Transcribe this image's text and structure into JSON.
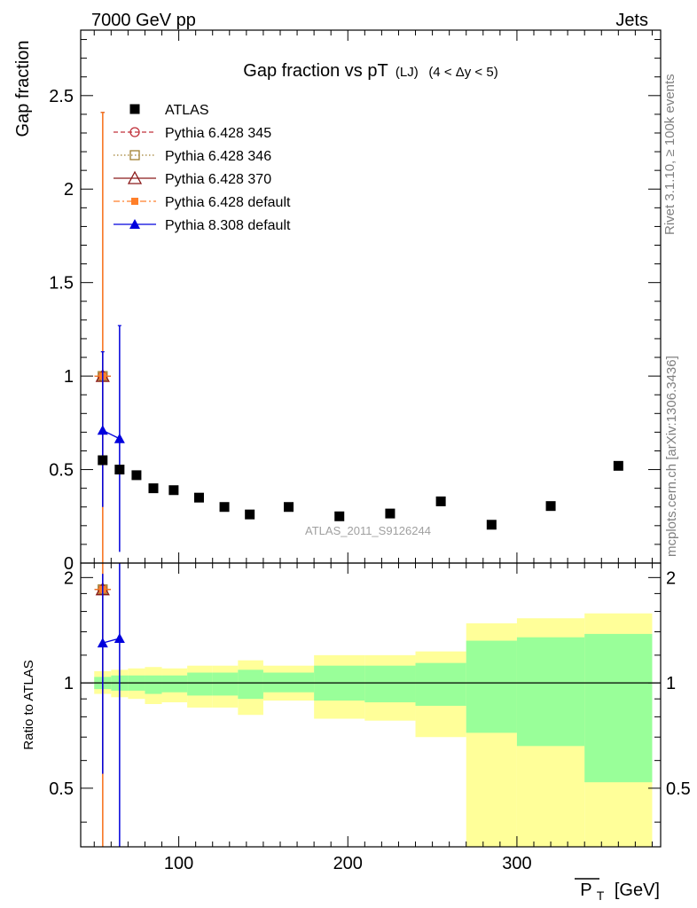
{
  "header": {
    "left": "7000 GeV pp",
    "right": "Jets"
  },
  "side_texts": {
    "rivet": "Rivet 3.1.10, ≥ 100k events",
    "mcplots": "mcplots.cern.ch [arXiv:1306.3436]"
  },
  "watermark": "ATLAS_2011_S9126244",
  "chart_data": {
    "type": "scatter",
    "title_main": "Gap fraction vs pT",
    "title_sub": "(LJ)",
    "title_range": "(4 < Δy < 5)",
    "xlabel_symbol": "P",
    "xlabel_subscript": "T",
    "xlabel_unit": "[GeV]",
    "ylabel": "Gap fraction",
    "ratio_ylabel": "Ratio to ATLAS",
    "xlim": [
      42,
      385
    ],
    "ylim": [
      0,
      2.85
    ],
    "ratio_ylim": [
      0.34,
      2.2
    ],
    "x_ticks": [
      100,
      200,
      300
    ],
    "y_ticks": [
      0,
      0.5,
      1,
      1.5,
      2,
      2.5
    ],
    "y_tick_labels": [
      "0",
      "0.5",
      "1",
      "1.5",
      "2",
      "2.5"
    ],
    "ratio_ticks": [
      0.5,
      1,
      2
    ],
    "ratio_tick_labels": [
      "0.5",
      "1",
      "2"
    ],
    "data": {
      "name": "ATLAS",
      "color": "#000000",
      "x": [
        55,
        65,
        75,
        85,
        97,
        112,
        127,
        142,
        165,
        195,
        225,
        255,
        285,
        320,
        360
      ],
      "y": [
        0.55,
        0.5,
        0.47,
        0.4,
        0.39,
        0.35,
        0.3,
        0.26,
        0.3,
        0.25,
        0.265,
        0.33,
        0.205,
        0.305,
        0.52
      ]
    },
    "series": [
      {
        "name": "Pythia 6.428 345",
        "color": "#c0303a",
        "marker": "circle-open",
        "line": "dashed",
        "x": [
          55
        ],
        "y": [
          1.0
        ],
        "yerr_hi": [
          2.41
        ],
        "yerr_lo": [
          0.0
        ],
        "ratio": [
          1.85
        ]
      },
      {
        "name": "Pythia 6.428 346",
        "color": "#a08030",
        "marker": "square-open",
        "line": "dotted",
        "x": [
          55
        ],
        "y": [
          1.0
        ],
        "yerr_hi": [
          2.41
        ],
        "yerr_lo": [
          0.0
        ],
        "ratio": [
          1.85
        ]
      },
      {
        "name": "Pythia 6.428 370",
        "color": "#8b1a1a",
        "marker": "triangle-open",
        "line": "solid",
        "x": [
          55
        ],
        "y": [
          1.0
        ],
        "yerr_hi": [
          2.41
        ],
        "yerr_lo": [
          0.0
        ],
        "ratio": [
          1.85
        ]
      },
      {
        "name": "Pythia 6.428 default",
        "color": "#ff7f2a",
        "marker": "square-filled",
        "line": "dashdot",
        "x": [
          55
        ],
        "y": [
          1.0
        ],
        "yerr_hi": [
          2.41
        ],
        "yerr_lo": [
          0.0
        ],
        "ratio": [
          1.85
        ]
      },
      {
        "name": "Pythia 8.308 default",
        "color": "#0000dd",
        "marker": "triangle-filled",
        "line": "solid",
        "x": [
          55,
          65
        ],
        "y": [
          0.71,
          0.665
        ],
        "yerr_hi": [
          1.13,
          1.27
        ],
        "yerr_lo": [
          0.3,
          0.06
        ],
        "ratio": [
          1.3,
          1.34
        ],
        "ratio_hi": [
          2.05,
          2.25
        ],
        "ratio_lo": [
          0.55,
          0.3
        ]
      }
    ],
    "ratio_bands": {
      "edges": [
        50,
        60,
        70,
        80,
        90,
        105,
        120,
        135,
        150,
        180,
        210,
        240,
        270,
        300,
        340,
        380
      ],
      "yellow_lo": [
        0.93,
        0.91,
        0.9,
        0.87,
        0.88,
        0.85,
        0.85,
        0.81,
        0.89,
        0.79,
        0.78,
        0.7,
        0.3,
        0.3,
        0.3
      ],
      "yellow_hi": [
        1.08,
        1.09,
        1.1,
        1.11,
        1.1,
        1.12,
        1.12,
        1.16,
        1.12,
        1.2,
        1.2,
        1.23,
        1.48,
        1.53,
        1.58
      ],
      "green_lo": [
        0.96,
        0.95,
        0.95,
        0.93,
        0.94,
        0.92,
        0.92,
        0.9,
        0.94,
        0.89,
        0.88,
        0.86,
        0.72,
        0.66,
        0.52
      ],
      "green_hi": [
        1.04,
        1.05,
        1.05,
        1.05,
        1.05,
        1.07,
        1.07,
        1.09,
        1.07,
        1.12,
        1.12,
        1.14,
        1.32,
        1.35,
        1.38
      ],
      "yellow_color": "#ffff99",
      "green_color": "#99ff99"
    }
  }
}
